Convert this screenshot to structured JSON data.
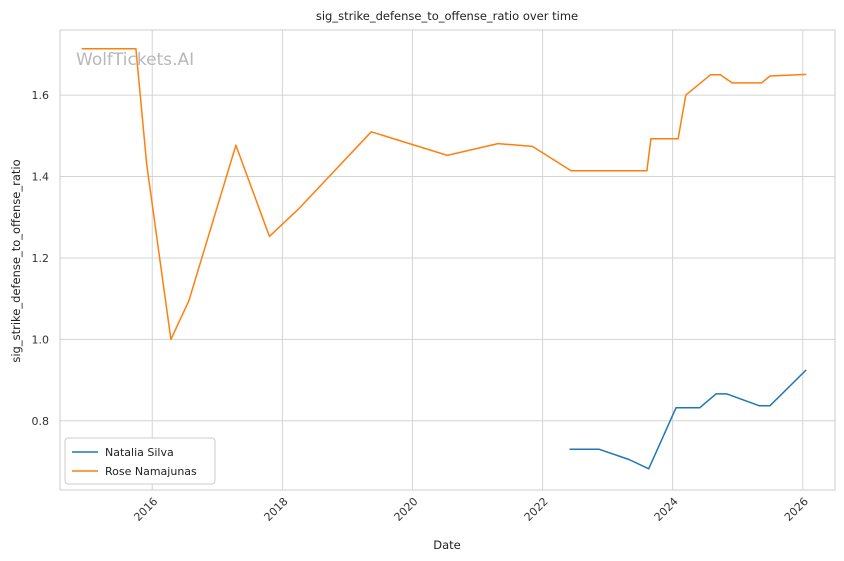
{
  "chart_data": {
    "type": "line",
    "title": "sig_strike_defense_to_offense_ratio over time",
    "xlabel": "Date",
    "ylabel": "sig_strike_defense_to_offense_ratio",
    "watermark": "WolfTickets.AI",
    "xlim": [
      "2014-08-01",
      "2026-07-01"
    ],
    "ylim": [
      0.63,
      1.76
    ],
    "x_ticks": [
      "2016",
      "2018",
      "2020",
      "2022",
      "2024",
      "2026"
    ],
    "y_ticks": [
      "0.8",
      "1.0",
      "1.2",
      "1.4",
      "1.6"
    ],
    "grid": true,
    "legend_position": "lower-left",
    "series": [
      {
        "name": "Natalia Silva",
        "color": "#1f77b4",
        "points": [
          {
            "x": "2022-06-01",
            "y": 0.73
          },
          {
            "x": "2022-11-15",
            "y": 0.73
          },
          {
            "x": "2023-05-01",
            "y": 0.705
          },
          {
            "x": "2023-08-20",
            "y": 0.682
          },
          {
            "x": "2024-01-20",
            "y": 0.832
          },
          {
            "x": "2024-06-01",
            "y": 0.832
          },
          {
            "x": "2024-09-01",
            "y": 0.866
          },
          {
            "x": "2024-11-01",
            "y": 0.866
          },
          {
            "x": "2025-05-01",
            "y": 0.837
          },
          {
            "x": "2025-07-01",
            "y": 0.837
          },
          {
            "x": "2026-01-20",
            "y": 0.925
          }
        ]
      },
      {
        "name": "Rose Namajunas",
        "color": "#ff7f0e",
        "points": [
          {
            "x": "2014-12-01",
            "y": 1.714
          },
          {
            "x": "2015-10-01",
            "y": 1.714
          },
          {
            "x": "2015-12-01",
            "y": 1.43
          },
          {
            "x": "2016-04-15",
            "y": 1.0
          },
          {
            "x": "2016-07-25",
            "y": 1.095
          },
          {
            "x": "2017-04-15",
            "y": 1.477
          },
          {
            "x": "2017-10-20",
            "y": 1.253
          },
          {
            "x": "2018-04-01",
            "y": 1.32
          },
          {
            "x": "2019-05-15",
            "y": 1.51
          },
          {
            "x": "2020-07-15",
            "y": 1.452
          },
          {
            "x": "2021-04-25",
            "y": 1.481
          },
          {
            "x": "2021-11-05",
            "y": 1.474
          },
          {
            "x": "2022-06-10",
            "y": 1.414
          },
          {
            "x": "2023-08-10",
            "y": 1.414
          },
          {
            "x": "2023-09-01",
            "y": 1.493
          },
          {
            "x": "2024-02-01",
            "y": 1.493
          },
          {
            "x": "2024-03-15",
            "y": 1.6
          },
          {
            "x": "2024-08-01",
            "y": 1.65
          },
          {
            "x": "2024-09-25",
            "y": 1.65
          },
          {
            "x": "2024-12-01",
            "y": 1.63
          },
          {
            "x": "2025-05-15",
            "y": 1.63
          },
          {
            "x": "2025-07-01",
            "y": 1.647
          },
          {
            "x": "2026-01-20",
            "y": 1.651
          }
        ]
      }
    ]
  }
}
